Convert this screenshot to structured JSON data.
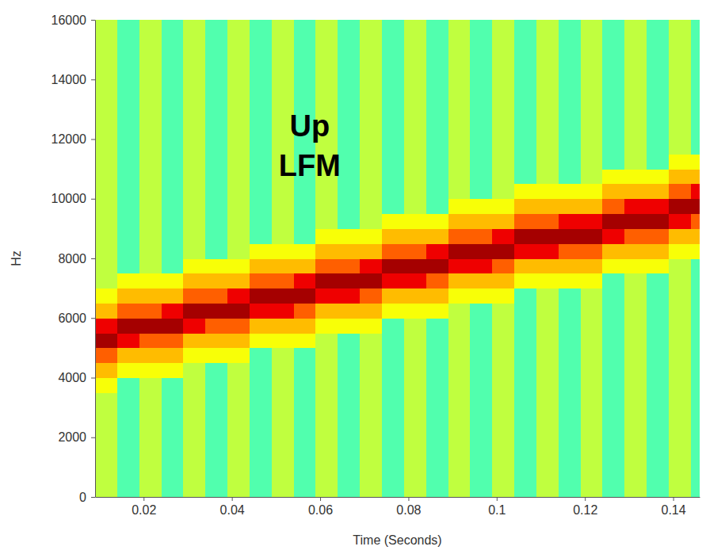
{
  "chart_data": {
    "type": "heatmap",
    "x_label": "Time (Seconds)",
    "y_label": "Hz",
    "annotations": [
      "Up",
      "LFM"
    ],
    "xlim": [
      0.009,
      0.146
    ],
    "xticks": [
      0.02,
      0.04,
      0.06,
      0.08,
      0.1,
      0.12,
      0.14
    ],
    "ylim": [
      0,
      16000
    ],
    "yticks": [
      0,
      2000,
      4000,
      6000,
      8000,
      10000,
      12000,
      14000,
      16000
    ],
    "grid": false,
    "color": "jet",
    "zlim": [
      -55,
      0
    ],
    "x_bins": [
      0.009,
      0.014,
      0.019,
      0.024,
      0.029,
      0.034,
      0.039,
      0.044,
      0.049,
      0.054,
      0.059,
      0.064,
      0.069,
      0.074,
      0.079,
      0.084,
      0.089,
      0.094,
      0.099,
      0.104,
      0.109,
      0.114,
      0.119,
      0.124,
      0.129,
      0.134,
      0.139,
      0.144,
      0.149
    ],
    "y_bins": [
      0,
      500,
      1000,
      1500,
      2000,
      2500,
      3000,
      3500,
      4000,
      4500,
      5000,
      5500,
      6000,
      6500,
      7000,
      7500,
      8000,
      8500,
      9000,
      9500,
      10000,
      10500,
      11000,
      11500,
      12000,
      12500,
      13000,
      13500,
      14000,
      14500,
      15000,
      15500,
      16000
    ],
    "z": [
      [
        -24,
        -30,
        -24,
        -30,
        -24,
        -30,
        -24,
        -30,
        -24,
        -30,
        -24,
        -30,
        -24,
        -30,
        -24,
        -30,
        -24,
        -30,
        -24,
        -30,
        -24,
        -30,
        -24,
        -30,
        -24,
        -30,
        -24,
        -30
      ],
      [
        -24,
        -30,
        -24,
        -30,
        -24,
        -30,
        -24,
        -30,
        -24,
        -30,
        -24,
        -30,
        -24,
        -30,
        -24,
        -30,
        -24,
        -30,
        -24,
        -30,
        -24,
        -30,
        -24,
        -30,
        -24,
        -30,
        -24,
        -30
      ],
      [
        -24,
        -30,
        -24,
        -30,
        -24,
        -30,
        -24,
        -30,
        -24,
        -30,
        -24,
        -30,
        -24,
        -30,
        -24,
        -30,
        -24,
        -30,
        -24,
        -30,
        -24,
        -30,
        -24,
        -30,
        -24,
        -30,
        -24,
        -30
      ],
      [
        -24,
        -30,
        -24,
        -30,
        -24,
        -30,
        -24,
        -30,
        -24,
        -30,
        -24,
        -30,
        -24,
        -30,
        -24,
        -30,
        -24,
        -30,
        -24,
        -30,
        -24,
        -30,
        -24,
        -30,
        -24,
        -30,
        -24,
        -30
      ],
      [
        -24,
        -30,
        -24,
        -30,
        -24,
        -30,
        -24,
        -30,
        -24,
        -30,
        -24,
        -30,
        -24,
        -30,
        -24,
        -30,
        -24,
        -30,
        -24,
        -30,
        -24,
        -30,
        -24,
        -30,
        -24,
        -30,
        -24,
        -30
      ],
      [
        -24,
        -30,
        -24,
        -30,
        -24,
        -30,
        -24,
        -30,
        -24,
        -30,
        -24,
        -30,
        -24,
        -30,
        -24,
        -30,
        -24,
        -30,
        -24,
        -30,
        -24,
        -30,
        -24,
        -30,
        -24,
        -30,
        -24,
        -30
      ],
      [
        -24,
        -30,
        -24,
        -30,
        -24,
        -30,
        -24,
        -30,
        -24,
        -30,
        -24,
        -30,
        -24,
        -30,
        -24,
        -30,
        -24,
        -30,
        -24,
        -30,
        -24,
        -30,
        -24,
        -30,
        -24,
        -30,
        -24,
        -30
      ],
      [
        -21,
        -30,
        -24,
        -30,
        -24,
        -30,
        -24,
        -30,
        -24,
        -30,
        -24,
        -30,
        -24,
        -30,
        -24,
        -30,
        -24,
        -30,
        -24,
        -30,
        -24,
        -30,
        -24,
        -30,
        -24,
        -30,
        -24,
        -30
      ],
      [
        -17,
        -21,
        -21,
        -21,
        -24,
        -30,
        -24,
        -30,
        -24,
        -30,
        -24,
        -30,
        -24,
        -30,
        -24,
        -30,
        -24,
        -30,
        -24,
        -30,
        -24,
        -30,
        -24,
        -30,
        -24,
        -30,
        -24,
        -30
      ],
      [
        -12,
        -17,
        -17,
        -17,
        -21,
        -21,
        -21,
        -30,
        -24,
        -30,
        -24,
        -30,
        -24,
        -30,
        -24,
        -30,
        -24,
        -30,
        -24,
        -30,
        -24,
        -30,
        -24,
        -30,
        -24,
        -30,
        -24,
        -30
      ],
      [
        -2,
        -6,
        -12,
        -12,
        -17,
        -17,
        -17,
        -21,
        -21,
        -21,
        -24,
        -30,
        -24,
        -30,
        -24,
        -30,
        -24,
        -30,
        -24,
        -30,
        -24,
        -30,
        -24,
        -30,
        -24,
        -30,
        -24,
        -30
      ],
      [
        -6,
        -2,
        -2,
        -2,
        -6,
        -12,
        -12,
        -17,
        -17,
        -17,
        -21,
        -21,
        -21,
        -30,
        -24,
        -30,
        -24,
        -30,
        -24,
        -30,
        -24,
        -30,
        -24,
        -30,
        -24,
        -30,
        -24,
        -30
      ],
      [
        -17,
        -12,
        -12,
        -6,
        -2,
        -2,
        -2,
        -6,
        -6,
        -12,
        -17,
        -17,
        -17,
        -21,
        -21,
        -21,
        -24,
        -30,
        -24,
        -30,
        -24,
        -30,
        -24,
        -30,
        -24,
        -30,
        -24,
        -30
      ],
      [
        -21,
        -17,
        -17,
        -17,
        -12,
        -12,
        -6,
        -2,
        -2,
        -2,
        -6,
        -6,
        -12,
        -17,
        -17,
        -17,
        -21,
        -21,
        -21,
        -30,
        -24,
        -30,
        -24,
        -30,
        -24,
        -30,
        -24,
        -30
      ],
      [
        -24,
        -21,
        -21,
        -21,
        -17,
        -17,
        -17,
        -12,
        -12,
        -6,
        -2,
        -2,
        -2,
        -6,
        -6,
        -12,
        -17,
        -17,
        -17,
        -21,
        -21,
        -21,
        -21,
        -30,
        -24,
        -30,
        -24,
        -30
      ],
      [
        -24,
        -30,
        -24,
        -30,
        -21,
        -21,
        -21,
        -17,
        -17,
        -17,
        -12,
        -12,
        -6,
        -2,
        -2,
        -2,
        -6,
        -6,
        -12,
        -17,
        -17,
        -17,
        -17,
        -21,
        -21,
        -21,
        -24,
        -30
      ],
      [
        -24,
        -30,
        -24,
        -30,
        -24,
        -30,
        -24,
        -21,
        -21,
        -21,
        -17,
        -17,
        -17,
        -12,
        -12,
        -6,
        -2,
        -2,
        -2,
        -6,
        -6,
        -12,
        -12,
        -17,
        -17,
        -17,
        -21,
        -21
      ],
      [
        -24,
        -30,
        -24,
        -30,
        -24,
        -30,
        -24,
        -30,
        -24,
        -30,
        -21,
        -21,
        -21,
        -17,
        -17,
        -17,
        -12,
        -12,
        -6,
        -2,
        -2,
        -2,
        -2,
        -6,
        -12,
        -12,
        -17,
        -17
      ],
      [
        -24,
        -30,
        -24,
        -30,
        -24,
        -30,
        -24,
        -30,
        -24,
        -30,
        -24,
        -30,
        -24,
        -21,
        -21,
        -21,
        -17,
        -17,
        -17,
        -12,
        -12,
        -6,
        -6,
        -2,
        -2,
        -2,
        -6,
        -12
      ],
      [
        -24,
        -30,
        -24,
        -30,
        -24,
        -30,
        -24,
        -30,
        -24,
        -30,
        -24,
        -30,
        -24,
        -30,
        -24,
        -30,
        -21,
        -21,
        -21,
        -17,
        -17,
        -17,
        -17,
        -12,
        -6,
        -6,
        -2,
        -2
      ],
      [
        -24,
        -30,
        -24,
        -30,
        -24,
        -30,
        -24,
        -30,
        -24,
        -30,
        -24,
        -30,
        -24,
        -30,
        -24,
        -30,
        -24,
        -30,
        -24,
        -21,
        -21,
        -21,
        -21,
        -17,
        -17,
        -17,
        -12,
        -6
      ],
      [
        -24,
        -30,
        -24,
        -30,
        -24,
        -30,
        -24,
        -30,
        -24,
        -30,
        -24,
        -30,
        -24,
        -30,
        -24,
        -30,
        -24,
        -30,
        -24,
        -30,
        -24,
        -30,
        -24,
        -21,
        -21,
        -21,
        -17,
        -17
      ],
      [
        -24,
        -30,
        -24,
        -30,
        -24,
        -30,
        -24,
        -30,
        -24,
        -30,
        -24,
        -30,
        -24,
        -30,
        -24,
        -30,
        -24,
        -30,
        -24,
        -30,
        -24,
        -30,
        -24,
        -30,
        -24,
        -30,
        -21,
        -21
      ],
      [
        -24,
        -30,
        -24,
        -30,
        -24,
        -30,
        -24,
        -30,
        -24,
        -30,
        -24,
        -30,
        -24,
        -30,
        -24,
        -30,
        -24,
        -30,
        -24,
        -30,
        -24,
        -30,
        -24,
        -30,
        -24,
        -30,
        -24,
        -30
      ],
      [
        -24,
        -30,
        -24,
        -30,
        -24,
        -30,
        -24,
        -30,
        -24,
        -30,
        -24,
        -30,
        -24,
        -30,
        -24,
        -30,
        -24,
        -30,
        -24,
        -30,
        -24,
        -30,
        -24,
        -30,
        -24,
        -30,
        -24,
        -30
      ],
      [
        -24,
        -30,
        -24,
        -30,
        -24,
        -30,
        -24,
        -30,
        -24,
        -30,
        -24,
        -30,
        -24,
        -30,
        -24,
        -30,
        -24,
        -30,
        -24,
        -30,
        -24,
        -30,
        -24,
        -30,
        -24,
        -30,
        -24,
        -30
      ],
      [
        -24,
        -30,
        -24,
        -30,
        -24,
        -30,
        -24,
        -30,
        -24,
        -30,
        -24,
        -30,
        -24,
        -30,
        -24,
        -30,
        -24,
        -30,
        -24,
        -30,
        -24,
        -30,
        -24,
        -30,
        -24,
        -30,
        -24,
        -30
      ],
      [
        -24,
        -30,
        -24,
        -30,
        -24,
        -30,
        -24,
        -30,
        -24,
        -30,
        -24,
        -30,
        -24,
        -30,
        -24,
        -30,
        -24,
        -30,
        -24,
        -30,
        -24,
        -30,
        -24,
        -30,
        -24,
        -30,
        -24,
        -30
      ],
      [
        -24,
        -30,
        -24,
        -30,
        -24,
        -30,
        -24,
        -30,
        -24,
        -30,
        -24,
        -30,
        -24,
        -30,
        -24,
        -30,
        -24,
        -30,
        -24,
        -30,
        -24,
        -30,
        -24,
        -30,
        -24,
        -30,
        -24,
        -30
      ],
      [
        -24,
        -30,
        -24,
        -30,
        -24,
        -30,
        -24,
        -30,
        -24,
        -30,
        -24,
        -30,
        -24,
        -30,
        -24,
        -30,
        -24,
        -30,
        -24,
        -30,
        -24,
        -30,
        -24,
        -30,
        -24,
        -30,
        -24,
        -30
      ],
      [
        -24,
        -30,
        -24,
        -30,
        -24,
        -30,
        -24,
        -30,
        -24,
        -30,
        -24,
        -30,
        -24,
        -30,
        -24,
        -30,
        -24,
        -30,
        -24,
        -30,
        -24,
        -30,
        -24,
        -30,
        -24,
        -30,
        -24,
        -30
      ],
      [
        -24,
        -30,
        -24,
        -30,
        -24,
        -30,
        -24,
        -30,
        -24,
        -30,
        -24,
        -30,
        -24,
        -30,
        -24,
        -30,
        -24,
        -30,
        -24,
        -30,
        -24,
        -30,
        -24,
        -30,
        -24,
        -30,
        -24,
        -30
      ]
    ]
  }
}
